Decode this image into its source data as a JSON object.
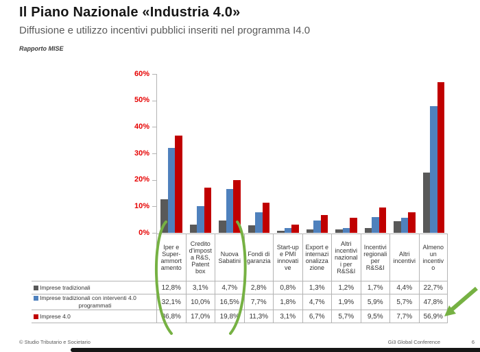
{
  "slide": {
    "title": "Il Piano Nazionale «Industria 4.0»",
    "subtitle": "Diffusione e utilizzo incentivi pubblici inseriti nel programma I4.0",
    "source": "Rapporto MISE"
  },
  "footer": {
    "left": "© Studio Tributario e Societario",
    "right": "Gi3 Global Conference",
    "page": "6"
  },
  "colors": {
    "series_gray": "#595959",
    "series_blue": "#4F81BD",
    "series_red": "#C00000",
    "axis_label_red": "#e60000",
    "grid_gray": "#b3b3b3",
    "annotation_green": "#76b143"
  },
  "chart_data": {
    "type": "bar",
    "title": "Diffusione e utilizzo incentivi pubblici inseriti nel programma I4.0",
    "xlabel": "",
    "ylabel": "",
    "ylim": [
      0,
      60
    ],
    "y_ticks": [
      "0%",
      "10%",
      "20%",
      "30%",
      "40%",
      "50%",
      "60%"
    ],
    "grid": "off",
    "legend_position": "data-table-left",
    "categories": [
      "Iper e Super-ammortamento",
      "Credito d'imposta R&S, Patent box",
      "Nuova Sabatini",
      "Fondi di garanzia",
      "Start-up e PMI innovative",
      "Export e internazionalizzazione",
      "Altri incentivi nazionali per R&S&I",
      "Incentivi regionali per R&S&I",
      "Altri incentivi",
      "Almeno un incentivo"
    ],
    "categories_display": [
      "Iper e\nSuper-\nammort\namento",
      "Credito\nd'impost\na R&S,\nPatent\nbox",
      "Nuova\nSabatini",
      "Fondi di\ngaranzia",
      "Start-up\ne PMI\ninnovati\nve",
      "Export e\ninternazi\nonalizza\nzione",
      "Altri\nincentivi\nnazional\ni per\nR&S&I",
      "Incentivi\nregionali\nper\nR&S&I",
      "Altri\nincentivi",
      "Almeno\nun\nincentiv\no"
    ],
    "series": [
      {
        "name": "Imprese tradizionali",
        "name_lines": [
          "Imprese tradizionali"
        ],
        "color": "#595959",
        "values": [
          12.8,
          3.1,
          4.7,
          2.8,
          0.8,
          1.3,
          1.2,
          1.7,
          4.4,
          22.7
        ],
        "labels": [
          "12,8%",
          "3,1%",
          "4,7%",
          "2,8%",
          "0,8%",
          "1,3%",
          "1,2%",
          "1,7%",
          "4,4%",
          "22,7%"
        ]
      },
      {
        "name": "Imprese tradizionali con interventi 4.0 programmati",
        "name_lines": [
          "Imprese tradizionali con interventi 4.0",
          "programmati"
        ],
        "color": "#4F81BD",
        "values": [
          32.1,
          10.0,
          16.5,
          7.7,
          1.8,
          4.7,
          1.9,
          5.9,
          5.7,
          47.8
        ],
        "labels": [
          "32,1%",
          "10,0%",
          "16,5%",
          "7,7%",
          "1,8%",
          "4,7%",
          "1,9%",
          "5,9%",
          "5,7%",
          "47,8%"
        ]
      },
      {
        "name": "Imprese 4.0",
        "name_lines": [
          "Imprese 4.0"
        ],
        "color": "#C00000",
        "values": [
          36.8,
          17.0,
          19.8,
          11.3,
          3.1,
          6.7,
          5.7,
          9.5,
          7.7,
          56.9
        ],
        "labels": [
          "36,8%",
          "17,0%",
          "19,8%",
          "11,3%",
          "3,1%",
          "6,7%",
          "5,7%",
          "9,5%",
          "7,7%",
          "56,9%"
        ]
      }
    ],
    "annotations": {
      "green_oval_around_categories": [
        "Iper e Super-ammortamento",
        "Credito d'imposta R&S, Patent box",
        "Nuova Sabatini"
      ],
      "green_arrow_points_to": "56,9%"
    }
  }
}
